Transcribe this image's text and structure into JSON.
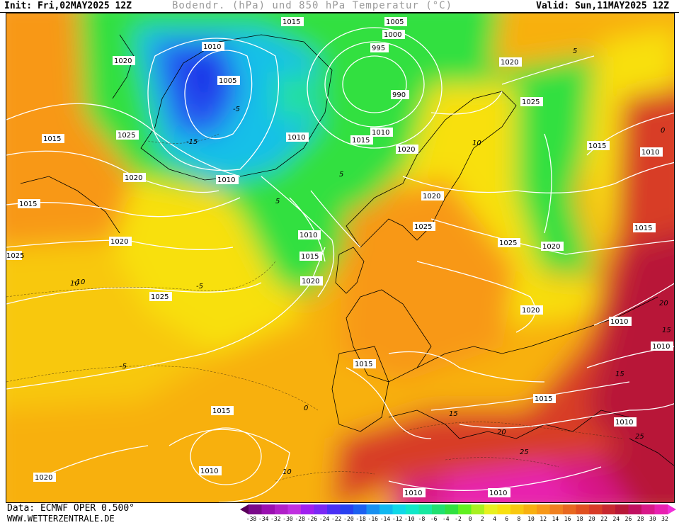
{
  "header": {
    "init": "Init: Fri,02MAY2025 12Z",
    "title": "Bodendr. (hPa) und 850 hPa Temperatur (°C)",
    "valid": "Valid: Sun,11MAY2025 12Z"
  },
  "footer": {
    "data_source": "Data: ECMWF OPER 0.500°",
    "website": "WWW.WETTERZENTRALE.DE"
  },
  "colorbar": {
    "labels": [
      "-38",
      "-34",
      "-32",
      "-30",
      "-28",
      "-26",
      "-24",
      "-22",
      "-20",
      "-18",
      "-16",
      "-14",
      "-12",
      "-10",
      "-8",
      "-6",
      "-4",
      "-2",
      "0",
      "2",
      "4",
      "6",
      "8",
      "10",
      "12",
      "14",
      "16",
      "18",
      "20",
      "22",
      "24",
      "26",
      "28",
      "30",
      "32"
    ],
    "colors": [
      "#5a005a",
      "#7a0a8a",
      "#9a10b0",
      "#b020c8",
      "#c030e0",
      "#a020f0",
      "#7a28f5",
      "#4a30f5",
      "#2840f0",
      "#1c60f0",
      "#1890f0",
      "#10b8f0",
      "#10d8e8",
      "#10e8c8",
      "#18e8a0",
      "#20e070",
      "#30e040",
      "#60f020",
      "#a8f020",
      "#e8f020",
      "#f8e010",
      "#f8c810",
      "#f8b010",
      "#f89818",
      "#f08020",
      "#e86820",
      "#e05020",
      "#d83c28",
      "#c82830",
      "#b81838",
      "#c01060",
      "#d81888",
      "#e820b0",
      "#f030d8"
    ]
  },
  "isobars": [
    "1015",
    "1010",
    "1020",
    "1005",
    "1005",
    "1000",
    "995",
    "990",
    "1020",
    "1025",
    "1025",
    "1015",
    "1015",
    "1010",
    "1010",
    "1015",
    "1020",
    "1020",
    "1010",
    "1020",
    "1015",
    "1025",
    "1020",
    "1025",
    "1025",
    "1010",
    "1015",
    "1020",
    "1020",
    "1015",
    "1010",
    "1020",
    "1025",
    "1010",
    "1015",
    "1015",
    "1015",
    "1010",
    "1020",
    "1010",
    "1010",
    "1010",
    "1010"
  ],
  "isotherms": [
    "-15",
    "-10",
    "-5",
    "-5",
    "0",
    "5",
    "10",
    "10",
    "5",
    "5",
    "10",
    "15",
    "15",
    "20",
    "25",
    "25",
    "15",
    "20",
    "0",
    "-5"
  ]
}
